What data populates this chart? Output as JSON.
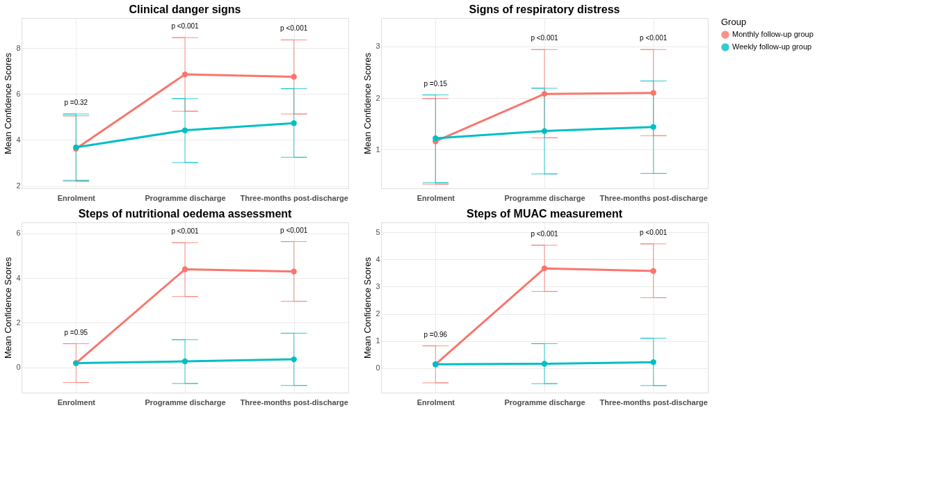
{
  "chart_data": [
    {
      "type": "line",
      "title": "Clinical danger signs",
      "ylabel": "Mean Confidence Scores",
      "categories": [
        "Enrolment",
        "Programme discharge",
        "Three-months post-discharge"
      ],
      "ylim": [
        1.9,
        9.3
      ],
      "yticks": [
        2,
        4,
        6,
        8
      ],
      "grid": true,
      "marker": "circle",
      "line_style": "solid",
      "legend": "right",
      "series": [
        {
          "name": "Monthly follow-up group",
          "color": "#f8766d",
          "values": [
            3.62,
            6.85,
            6.75
          ],
          "errors": [
            [
              2.2,
              5.05
            ],
            [
              5.25,
              8.45
            ],
            [
              5.13,
              8.35
            ]
          ]
        },
        {
          "name": "Weekly follow-up group",
          "color": "#00bfc4",
          "values": [
            3.68,
            4.42,
            4.73
          ],
          "errors": [
            [
              2.25,
              5.13
            ],
            [
              3.02,
              5.8
            ],
            [
              3.25,
              6.23
            ]
          ]
        }
      ],
      "annotations": [
        "p =0.32",
        "p <0.001",
        "p <0.001"
      ]
    },
    {
      "type": "line",
      "title": "Signs of respiratory distress",
      "ylabel": "Mean Confidence Scores",
      "categories": [
        "Enrolment",
        "Programme discharge",
        "Three-months post-discharge"
      ],
      "ylim": [
        0.25,
        3.55
      ],
      "yticks": [
        1,
        2,
        3
      ],
      "grid": true,
      "marker": "circle",
      "line_style": "solid",
      "legend": "right",
      "legend_title": "Group",
      "series": [
        {
          "name": "Monthly follow-up group",
          "color": "#f8766d",
          "values": [
            1.16,
            2.08,
            2.1
          ],
          "errors": [
            [
              0.33,
              1.99
            ],
            [
              1.23,
              2.94
            ],
            [
              1.27,
              2.94
            ]
          ]
        },
        {
          "name": "Weekly follow-up group",
          "color": "#00bfc4",
          "values": [
            1.22,
            1.36,
            1.44
          ],
          "errors": [
            [
              0.36,
              2.06
            ],
            [
              0.53,
              2.19
            ],
            [
              0.54,
              2.33
            ]
          ]
        }
      ],
      "annotations": [
        "p =0.15",
        "p <0.001",
        "p <0.001"
      ]
    },
    {
      "type": "line",
      "title": "Steps of nutritional oedema assessment",
      "ylabel": "Mean Confidence Scores",
      "categories": [
        "Enrolment",
        "Programme discharge",
        "Three-months post-discharge"
      ],
      "ylim": [
        -1.13,
        6.49
      ],
      "yticks": [
        0,
        2,
        4,
        6
      ],
      "grid": true,
      "marker": "circle",
      "line_style": "solid",
      "legend": "right",
      "series": [
        {
          "name": "Monthly follow-up group",
          "color": "#f8766d",
          "values": [
            0.19,
            4.39,
            4.29
          ],
          "errors": [
            [
              -0.68,
              1.06
            ],
            [
              3.17,
              5.58
            ],
            [
              2.96,
              5.63
            ]
          ]
        },
        {
          "name": "Weekly follow-up group",
          "color": "#00bfc4",
          "values": [
            0.19,
            0.27,
            0.36
          ],
          "errors": [
            null,
            [
              -0.72,
              1.24
            ],
            [
              -0.81,
              1.53
            ]
          ]
        }
      ],
      "annotations": [
        "p =0.95",
        "p <0.001",
        "p <0.001"
      ]
    },
    {
      "type": "line",
      "title": "Steps of MUAC measurement",
      "ylabel": "Mean Confidence Scores",
      "categories": [
        "Enrolment",
        "Programme discharge",
        "Three-months post-discharge"
      ],
      "ylim": [
        -0.9,
        5.36
      ],
      "yticks": [
        0,
        1,
        2,
        3,
        4,
        5
      ],
      "grid": true,
      "marker": "circle",
      "line_style": "solid",
      "legend": "right",
      "series": [
        {
          "name": "Monthly follow-up group",
          "color": "#f8766d",
          "values": [
            0.14,
            3.67,
            3.57
          ],
          "errors": [
            [
              -0.54,
              0.82
            ],
            [
              2.82,
              4.52
            ],
            [
              2.59,
              4.57
            ]
          ]
        },
        {
          "name": "Weekly follow-up group",
          "color": "#00bfc4",
          "values": [
            0.14,
            0.16,
            0.22
          ],
          "errors": [
            null,
            [
              -0.57,
              0.9
            ],
            [
              -0.64,
              1.1
            ]
          ]
        }
      ],
      "annotations": [
        "p =0.96",
        "p <0.001",
        "p <0.001"
      ]
    }
  ]
}
